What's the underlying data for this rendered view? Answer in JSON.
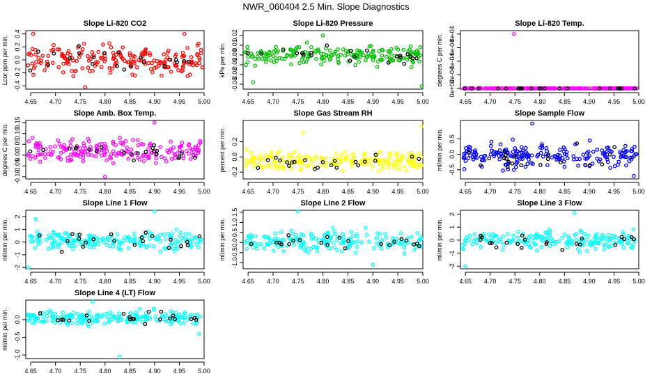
{
  "title": "NWR_060404  2.5 Min. Slope Diagnostics",
  "chart_data": [
    {
      "type": "scatter",
      "title": "Slope Li-820 CO2",
      "ylabel": "Lcor ppm per min.",
      "color": "#ff0000",
      "xlim": [
        4.64,
        5.0
      ],
      "ylim": [
        -0.45,
        0.45
      ],
      "xticks": [
        "4.65",
        "4.70",
        "4.75",
        "4.80",
        "4.85",
        "4.90",
        "4.95",
        "5.00"
      ],
      "yticks": [
        -0.4,
        -0.2,
        0.0,
        0.2,
        0.4
      ],
      "ytick_labels": [
        "-0.4",
        "-0.2",
        "0.0",
        "0.2",
        "0.4"
      ],
      "center": 0.0,
      "spread": 0.18,
      "outliers": [
        [
          4.655,
          0.4
        ],
        [
          4.76,
          -0.42
        ],
        [
          4.96,
          0.4
        ]
      ]
    },
    {
      "type": "scatter",
      "title": "Slope Li-820 Pressure",
      "ylabel": "kPa per min.",
      "color": "#00c000",
      "xlim": [
        4.64,
        5.0
      ],
      "ylim": [
        -0.035,
        0.025
      ],
      "xticks": [
        "4.65",
        "4.70",
        "4.75",
        "4.80",
        "4.85",
        "4.90",
        "4.95",
        "5.00"
      ],
      "yticks": [
        -0.03,
        -0.02,
        -0.01,
        0.0,
        0.01,
        0.02
      ],
      "ytick_labels": [
        "-0.03",
        "-0.02",
        "-0.01",
        "0.00",
        "0.01",
        "0.02"
      ],
      "center": 0.0,
      "spread": 0.008,
      "outliers": [
        [
          4.66,
          -0.028
        ],
        [
          4.8,
          0.02
        ],
        [
          4.998,
          -0.032
        ]
      ]
    },
    {
      "type": "scatter",
      "title": "Slope Li-820 Temp.",
      "ylabel": "degrees C per min.",
      "color": "#ff00ff",
      "xlim": [
        4.64,
        5.0
      ],
      "ylim": [
        -1e-05,
        0.00085
      ],
      "xticks": [
        "4.65",
        "4.70",
        "4.75",
        "4.80",
        "4.85",
        "4.90",
        "4.95",
        "5.00"
      ],
      "yticks": [
        0,
        0.0002,
        0.0004,
        0.0006,
        0.0008
      ],
      "ytick_labels": [
        "0e+00",
        "2e-04",
        "4e-04",
        "6e-04",
        "8e-04"
      ],
      "center": 0.0,
      "spread": 0.0,
      "outliers": [
        [
          4.748,
          0.0008
        ]
      ]
    },
    {
      "type": "scatter",
      "title": "Slope Amb. Box Temp.",
      "ylabel": "degrees C per min.",
      "color": "#ff00ff",
      "xlim": [
        4.64,
        5.0
      ],
      "ylim": [
        -0.11,
        0.16
      ],
      "xticks": [
        "4.65",
        "4.70",
        "4.75",
        "4.80",
        "4.85",
        "4.90",
        "4.95",
        "5.00"
      ],
      "yticks": [
        -0.1,
        -0.05,
        0.0,
        0.05,
        0.1,
        0.15
      ],
      "ytick_labels": [
        "-0.10",
        "-0.05",
        "0.00",
        "0.05",
        "0.10",
        "0.15"
      ],
      "center": 0.02,
      "spread": 0.04,
      "outliers": [
        [
          4.8,
          -0.1
        ],
        [
          4.9,
          0.15
        ]
      ]
    },
    {
      "type": "scatter",
      "title": "Slope Gas Stream RH",
      "ylabel": "percent per min.",
      "color": "#ffff00",
      "xlim": [
        4.64,
        5.0
      ],
      "ylim": [
        -0.29,
        0.48
      ],
      "xticks": [
        "4.65",
        "4.70",
        "4.75",
        "4.80",
        "4.85",
        "4.90",
        "4.95",
        "5.00"
      ],
      "yticks": [
        -0.2,
        0.0,
        0.2
      ],
      "ytick_labels": [
        "-0.2",
        "0.0",
        "0.2"
      ],
      "center": -0.05,
      "spread": 0.11,
      "outliers": [
        [
          4.998,
          0.4
        ],
        [
          4.76,
          0.32
        ]
      ]
    },
    {
      "type": "scatter",
      "title": "Slope Sample Flow",
      "ylabel": "ml/min per min.",
      "color": "#0000ff",
      "xlim": [
        4.64,
        5.0
      ],
      "ylim": [
        -0.8,
        1.1
      ],
      "xticks": [
        "4.65",
        "4.70",
        "4.75",
        "4.80",
        "4.85",
        "4.90",
        "4.95",
        "5.00"
      ],
      "yticks": [
        -0.5,
        0.0,
        0.5
      ],
      "ytick_labels": [
        "-0.5",
        "0.0",
        "0.5"
      ],
      "center": -0.05,
      "spread": 0.3,
      "outliers": [
        [
          4.785,
          1.0
        ],
        [
          4.99,
          -0.7
        ]
      ]
    },
    {
      "type": "scatter",
      "title": "Slope Line 1 Flow",
      "ylabel": "ml/min per min.",
      "color": "#00ffff",
      "xlim": [
        4.64,
        5.0
      ],
      "ylim": [
        -2.1,
        2.5
      ],
      "xticks": [
        "4.65",
        "4.70",
        "4.75",
        "4.80",
        "4.85",
        "4.90",
        "4.95",
        "5.00"
      ],
      "yticks": [
        -2,
        -1,
        0,
        1,
        2
      ],
      "ytick_labels": [
        "-2",
        "-1",
        "0",
        "1",
        "2"
      ],
      "center": 0.1,
      "spread": 0.6,
      "outliers": [
        [
          4.9,
          2.4
        ],
        [
          4.645,
          -2.0
        ],
        [
          4.66,
          1.8
        ]
      ]
    },
    {
      "type": "scatter",
      "title": "Slope Line 2 Flow",
      "ylabel": "ml/min per min.",
      "color": "#00ffff",
      "xlim": [
        4.64,
        5.0
      ],
      "ylim": [
        -1.3,
        1.6
      ],
      "xticks": [
        "4.65",
        "4.70",
        "4.75",
        "4.80",
        "4.85",
        "4.90",
        "4.95",
        "5.00"
      ],
      "yticks": [
        -1.0,
        -0.5,
        0.0,
        0.5,
        1.0,
        1.5
      ],
      "ytick_labels": [
        "-1.0",
        "-0.5",
        "0.0",
        "0.5",
        "1.0",
        "1.5"
      ],
      "center": 0.05,
      "spread": 0.4,
      "outliers": [
        [
          4.75,
          1.55
        ],
        [
          4.9,
          -1.1
        ]
      ]
    },
    {
      "type": "scatter",
      "title": "Slope Line 3 Flow",
      "ylabel": "ml/min per min.",
      "color": "#00ffff",
      "xlim": [
        4.64,
        5.0
      ],
      "ylim": [
        -2.2,
        2.3
      ],
      "xticks": [
        "4.65",
        "4.70",
        "4.75",
        "4.80",
        "4.85",
        "4.90",
        "4.95",
        "5.00"
      ],
      "yticks": [
        -2,
        -1,
        0,
        1,
        2
      ],
      "ytick_labels": [
        "-2",
        "-1",
        "0",
        "1",
        "2"
      ],
      "center": 0.0,
      "spread": 0.6,
      "outliers": [
        [
          4.65,
          -2.0
        ],
        [
          4.87,
          2.1
        ]
      ]
    },
    {
      "type": "scatter",
      "title": "Slope Line 4 (LT) Flow",
      "ylabel": "ml/min per min.",
      "color": "#00ffff",
      "xlim": [
        4.64,
        5.0
      ],
      "ylim": [
        -1.1,
        0.55
      ],
      "xticks": [
        "4.65",
        "4.70",
        "4.75",
        "4.80",
        "4.85",
        "4.90",
        "4.95",
        "5.00"
      ],
      "yticks": [
        -1.0,
        -0.5,
        0.0
      ],
      "ytick_labels": [
        "-1.0",
        "-0.5",
        "0.0"
      ],
      "center": 0.05,
      "spread": 0.15,
      "outliers": [
        [
          4.83,
          -1.05
        ],
        [
          4.99,
          -0.4
        ],
        [
          4.775,
          0.5
        ]
      ]
    }
  ]
}
